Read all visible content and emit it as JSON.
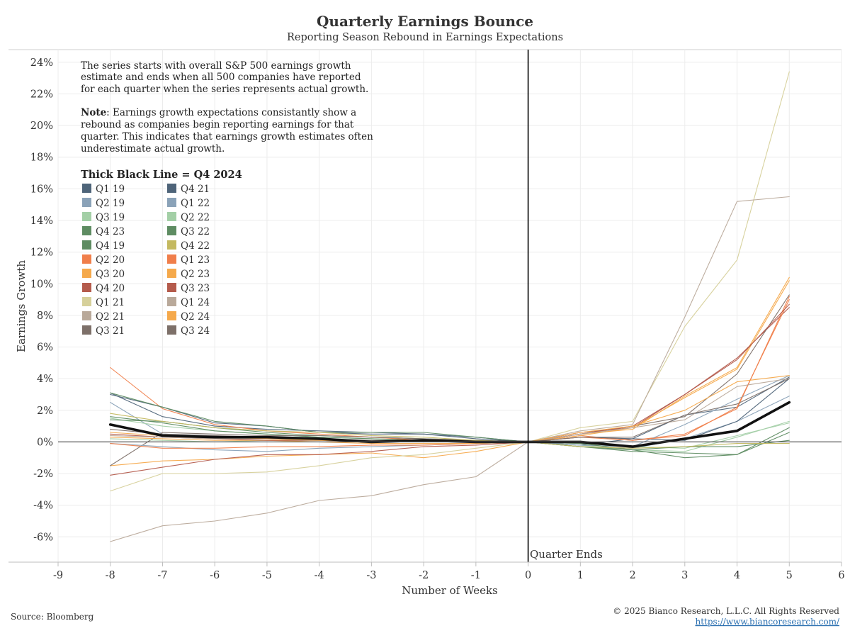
{
  "header": {
    "title": "Quarterly Earnings Bounce",
    "subtitle": "Reporting Season Rebound in Earnings Expectations"
  },
  "annotation": {
    "line1": "The series starts with overall S&P 500 earnings growth",
    "line2": "estimate and ends when all 500 companies have reported",
    "line3": "for each quarter when the series represents actual growth.",
    "note_label": "Note",
    "note_line1": ": Earnings growth expectations consistantly show a",
    "note_line2": "rebound as companies begin reporting earnings for that",
    "note_line3": "quarter. This indicates that earnings growth estimates often",
    "note_line4": "underestimate actual growth.",
    "legend_heading": "Thick Black Line = Q4 2024",
    "quarter_ends": "Quarter Ends"
  },
  "footer": {
    "source": "Source: Bloomberg",
    "copyright": "© 2025 Bianco Research, L.L.C. All Rights Reserved",
    "url": "https://www.biancoresearch.com/"
  },
  "colors": {
    "axis": "#000000",
    "grid": "#ececec",
    "highlight": "#111111"
  },
  "chart_data": {
    "type": "line",
    "title": "Quarterly Earnings Bounce",
    "subtitle": "Reporting Season Rebound in Earnings Expectations",
    "xlabel": "Number of Weeks",
    "ylabel": "Earnings Growth",
    "xlim": [
      -9,
      6
    ],
    "ylim": [
      -7.6,
      24.8
    ],
    "x_ticks": [
      -9,
      -8,
      -7,
      -6,
      -5,
      -4,
      -3,
      -2,
      -1,
      0,
      1,
      2,
      3,
      4,
      5,
      6
    ],
    "y_ticks": [
      -6,
      -4,
      -2,
      0,
      2,
      4,
      6,
      8,
      10,
      12,
      14,
      16,
      18,
      20,
      22,
      24
    ],
    "y_tick_labels": [
      "-6%",
      "-4%",
      "-2%",
      "0%",
      "2%",
      "4%",
      "6%",
      "8%",
      "10%",
      "12%",
      "14%",
      "16%",
      "18%",
      "20%",
      "22%",
      "24%"
    ],
    "grid": true,
    "legend": "top-left",
    "x": [
      -8,
      -7,
      -6,
      -5,
      -4,
      -3,
      -2,
      -1,
      0,
      1,
      2,
      3,
      4,
      5
    ],
    "series": [
      {
        "name": "Q1 19",
        "color": "#4e6479",
        "values": [
          3.1,
          1.6,
          1.0,
          0.8,
          0.7,
          0.6,
          0.5,
          0.3,
          0,
          -0.2,
          0.2,
          1.7,
          2.2,
          4.1
        ]
      },
      {
        "name": "Q2 19",
        "color": "#8aa2b8",
        "values": [
          2.5,
          0.5,
          0.4,
          0.2,
          0.1,
          0.1,
          0.1,
          0.0,
          0,
          -0.3,
          -0.4,
          0.2,
          1.3,
          2.9
        ]
      },
      {
        "name": "Q3 19",
        "color": "#a3cfa6",
        "values": [
          1.5,
          1.0,
          0.7,
          0.5,
          0.3,
          0.2,
          0.1,
          0.0,
          0,
          -0.2,
          -0.5,
          -0.6,
          0.3,
          1.3
        ]
      },
      {
        "name": "Q4 23",
        "color": "#5e8c62",
        "values": [
          1.4,
          1.3,
          0.9,
          0.6,
          0.4,
          0.3,
          0.2,
          0.1,
          0,
          -0.3,
          -0.5,
          -1.0,
          -0.8,
          0.9
        ]
      },
      {
        "name": "Q4 19",
        "color": "#5e8c62",
        "values": [
          1.6,
          1.2,
          0.7,
          0.5,
          0.3,
          0.2,
          0.1,
          0.0,
          0,
          -0.3,
          -0.6,
          -0.7,
          -0.8,
          0.6
        ]
      },
      {
        "name": "Q2 20",
        "color": "#f07e4a",
        "values": [
          4.7,
          2.1,
          1.1,
          0.7,
          0.5,
          0.3,
          0.1,
          0.0,
          0,
          0.4,
          0.1,
          0.5,
          2.1,
          9.2
        ]
      },
      {
        "name": "Q3 20",
        "color": "#f5a94b",
        "values": [
          -1.5,
          -1.2,
          -1.1,
          -0.9,
          -0.8,
          -0.7,
          -1.0,
          -0.6,
          0,
          0.5,
          0.8,
          2.9,
          4.7,
          10.4
        ]
      },
      {
        "name": "Q4 20",
        "color": "#b45b4c",
        "values": [
          -2.1,
          -1.6,
          -1.1,
          -0.8,
          -0.8,
          -0.6,
          -0.3,
          -0.2,
          0,
          0.6,
          0.9,
          3.0,
          5.3,
          8.5
        ]
      },
      {
        "name": "Q1 21",
        "color": "#d6d09a",
        "values": [
          -3.1,
          -2.0,
          -2.0,
          -1.9,
          -1.5,
          -1.0,
          -0.8,
          -0.4,
          0,
          0.9,
          1.3,
          7.3,
          11.5,
          23.4
        ]
      },
      {
        "name": "Q2 21",
        "color": "#b9a99a",
        "values": [
          -6.3,
          -5.3,
          -5.0,
          -4.5,
          -3.7,
          -3.4,
          -2.7,
          -2.2,
          0,
          0.7,
          1.1,
          7.9,
          15.2,
          15.5
        ]
      },
      {
        "name": "Q3 21",
        "color": "#7d7069",
        "values": [
          -1.5,
          0.6,
          0.5,
          0.4,
          0.4,
          0.3,
          0.2,
          0.1,
          0,
          0.5,
          1.0,
          1.6,
          4.3,
          9.3
        ]
      },
      {
        "name": "Q4 21",
        "color": "#4e6479",
        "values": [
          3.0,
          2.2,
          1.2,
          1.0,
          0.6,
          0.5,
          0.5,
          0.2,
          0,
          0.3,
          0.2,
          0.1,
          1.3,
          4.0
        ]
      },
      {
        "name": "Q1 22",
        "color": "#8aa2b8",
        "values": [
          -0.1,
          -0.3,
          -0.5,
          -0.6,
          -0.4,
          -0.3,
          -0.2,
          -0.1,
          0,
          -0.2,
          -0.3,
          1.1,
          2.7,
          4.2
        ]
      },
      {
        "name": "Q2 22",
        "color": "#a3cfa6",
        "values": [
          0.2,
          0.1,
          0.0,
          0.1,
          0.1,
          0.0,
          0.0,
          0.0,
          0,
          -0.1,
          -0.3,
          -0.4,
          0.4,
          1.2
        ]
      },
      {
        "name": "Q3 22",
        "color": "#5e8c62",
        "values": [
          3.1,
          2.2,
          1.3,
          1.0,
          0.6,
          0.6,
          0.6,
          0.3,
          0,
          -0.1,
          -0.5,
          -0.3,
          -0.3,
          0.1
        ]
      },
      {
        "name": "Q4 22",
        "color": "#c4b960",
        "values": [
          1.8,
          1.3,
          0.9,
          0.7,
          0.6,
          0.4,
          0.3,
          0.1,
          0,
          -0.3,
          -0.4,
          -0.3,
          -0.1,
          -0.1
        ]
      },
      {
        "name": "Q1 23",
        "color": "#f07e4a",
        "values": [
          -0.1,
          -0.4,
          -0.4,
          -0.3,
          -0.3,
          -0.2,
          -0.2,
          -0.1,
          0,
          0.3,
          0.1,
          0.4,
          2.2,
          9.0
        ]
      },
      {
        "name": "Q2 23",
        "color": "#f5a94b",
        "values": [
          0.3,
          0.2,
          0.1,
          0.1,
          0.0,
          -0.1,
          -0.1,
          -0.1,
          0,
          0.4,
          0.9,
          2.8,
          4.6,
          10.2
        ]
      },
      {
        "name": "Q3 23",
        "color": "#b45b4c",
        "values": [
          0.5,
          0.3,
          0.2,
          0.1,
          0.1,
          0.0,
          0.0,
          0.0,
          0,
          0.5,
          1.0,
          3.0,
          5.2,
          8.7
        ]
      },
      {
        "name": "Q1 24",
        "color": "#b9a99a",
        "values": [
          0.4,
          0.3,
          0.2,
          0.2,
          0.1,
          0.1,
          0.0,
          0.0,
          0,
          0.5,
          0.9,
          1.4,
          3.5,
          4.0
        ]
      },
      {
        "name": "Q2 24",
        "color": "#f5a94b",
        "values": [
          0.6,
          0.4,
          0.3,
          0.2,
          0.1,
          0.0,
          0.0,
          0.0,
          0,
          0.6,
          1.0,
          2.0,
          3.8,
          4.2
        ]
      },
      {
        "name": "Q3 24",
        "color": "#7d7069",
        "values": [
          0.8,
          0.5,
          0.4,
          0.3,
          0.2,
          0.1,
          0.1,
          0.0,
          0,
          0.3,
          0.3,
          1.7,
          2.4,
          4.0
        ]
      },
      {
        "name": "Q4 24",
        "color": "#111111",
        "thick": true,
        "values": [
          1.1,
          0.4,
          0.3,
          0.3,
          0.2,
          0.0,
          0.1,
          0.0,
          0,
          0.0,
          -0.3,
          0.2,
          0.7,
          2.5
        ]
      }
    ]
  }
}
